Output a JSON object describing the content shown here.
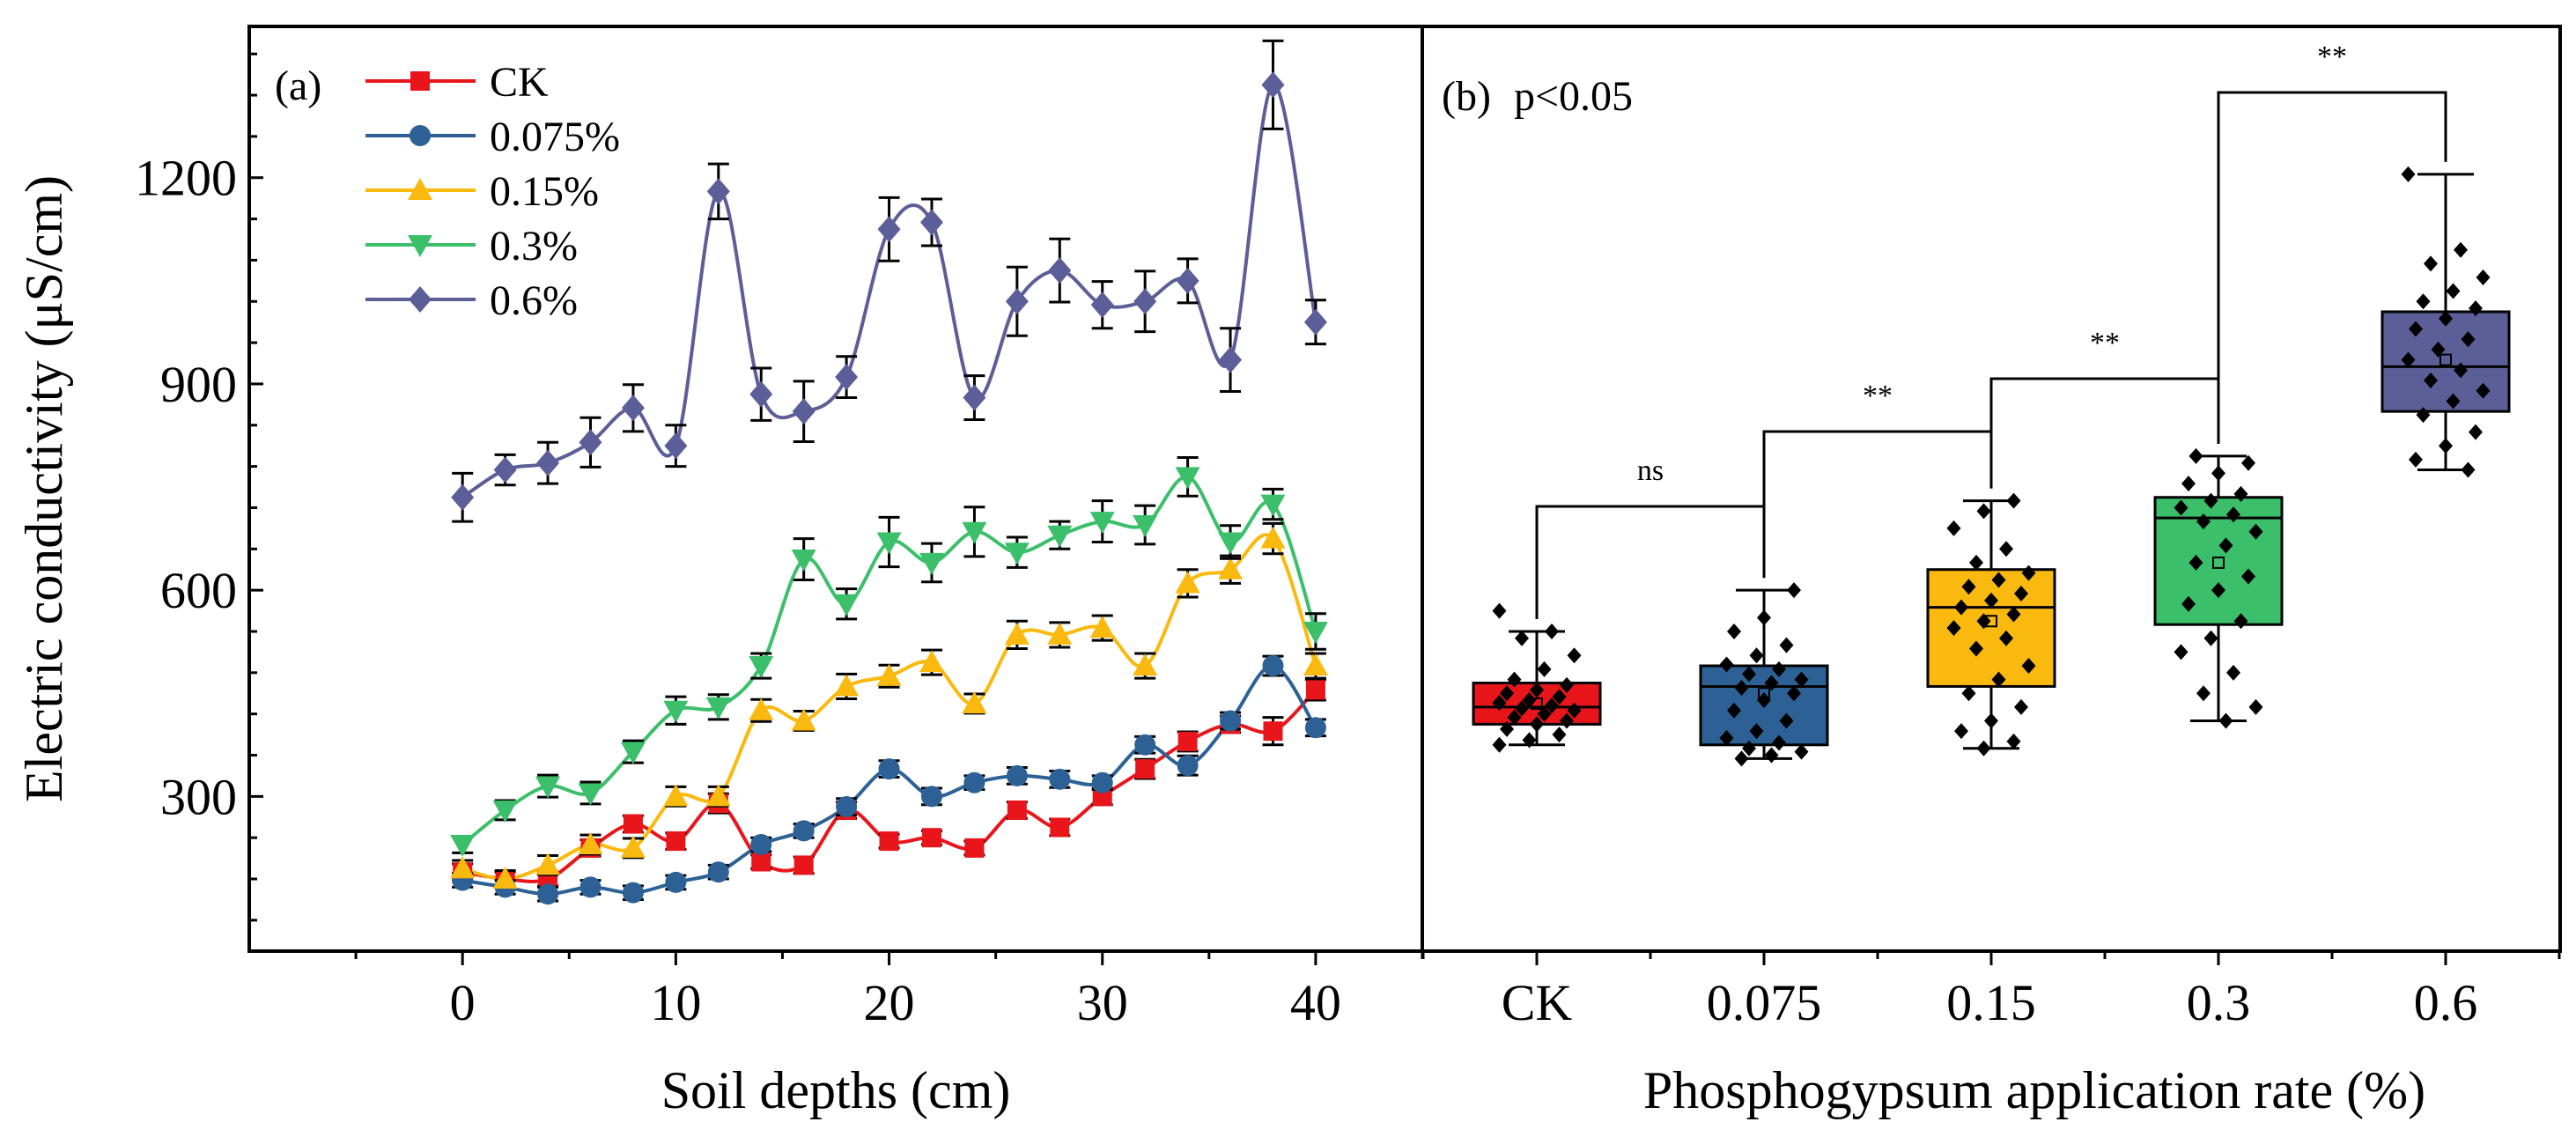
{
  "chart_data": [
    {
      "type": "line",
      "panel_label": "(a)",
      "xlabel": "Soil depths (cm)",
      "ylabel": "Electric conductivity (μS/cm)",
      "xlim": [
        -10,
        45
      ],
      "ylim": [
        75,
        1420
      ],
      "xticks": [
        0,
        10,
        20,
        30,
        40
      ],
      "yticks": [
        300,
        600,
        900,
        1200
      ],
      "legend_position": "top-left",
      "x": [
        0,
        2,
        4,
        6,
        8,
        10,
        12,
        14,
        16,
        18,
        20,
        22,
        24,
        26,
        28,
        30,
        32,
        34,
        36,
        38,
        40
      ],
      "series": [
        {
          "name": "CK",
          "color": "#e8161b",
          "marker": "square",
          "values": [
            190,
            180,
            180,
            225,
            260,
            235,
            290,
            205,
            200,
            280,
            235,
            240,
            225,
            280,
            255,
            300,
            340,
            380,
            405,
            395,
            455
          ],
          "errors": [
            12,
            10,
            10,
            12,
            12,
            12,
            14,
            10,
            12,
            12,
            10,
            10,
            10,
            12,
            12,
            12,
            14,
            14,
            12,
            20,
            15
          ]
        },
        {
          "name": "0.075%",
          "color": "#2d6196",
          "marker": "circle",
          "values": [
            178,
            168,
            158,
            168,
            160,
            175,
            190,
            230,
            250,
            285,
            340,
            300,
            320,
            330,
            325,
            320,
            375,
            345,
            410,
            490,
            400
          ],
          "errors": [
            10,
            10,
            10,
            10,
            10,
            10,
            10,
            10,
            10,
            12,
            12,
            12,
            10,
            12,
            12,
            10,
            12,
            14,
            12,
            14,
            12
          ]
        },
        {
          "name": "0.15%",
          "color": "#f9b90e",
          "marker": "triangle-up",
          "values": [
            195,
            180,
            200,
            230,
            225,
            300,
            300,
            425,
            410,
            460,
            475,
            495,
            435,
            535,
            535,
            545,
            490,
            610,
            630,
            675,
            490
          ],
          "errors": [
            12,
            12,
            14,
            14,
            14,
            14,
            14,
            16,
            14,
            18,
            16,
            18,
            14,
            20,
            18,
            18,
            18,
            20,
            20,
            22,
            18
          ]
        },
        {
          "name": "0.3%",
          "color": "#3bbf6a",
          "marker": "triangle-down",
          "values": [
            230,
            280,
            315,
            305,
            365,
            425,
            430,
            490,
            645,
            580,
            670,
            640,
            685,
            655,
            680,
            700,
            695,
            765,
            670,
            725,
            540
          ],
          "errors": [
            12,
            14,
            16,
            16,
            16,
            20,
            18,
            18,
            30,
            22,
            36,
            28,
            36,
            22,
            20,
            30,
            28,
            28,
            24,
            22,
            26
          ]
        },
        {
          "name": "0.6%",
          "color": "#5c5e98",
          "marker": "diamond",
          "values": [
            735,
            775,
            785,
            815,
            865,
            810,
            1180,
            885,
            860,
            910,
            1125,
            1135,
            880,
            1020,
            1065,
            1015,
            1020,
            1050,
            935,
            1335,
            990
          ],
          "errors": [
            35,
            22,
            30,
            36,
            34,
            30,
            40,
            38,
            44,
            30,
            46,
            34,
            32,
            50,
            46,
            34,
            44,
            32,
            46,
            64,
            32
          ]
        }
      ]
    },
    {
      "type": "box",
      "panel_label": "(b)",
      "annotation": "p<0.05",
      "xlabel": "Phosphogypsum application rate (%)",
      "ylabel": "",
      "ylim": [
        75,
        1420
      ],
      "categories": [
        "CK",
        "0.075",
        "0.15",
        "0.3",
        "0.6"
      ],
      "colors": [
        "#e8161b",
        "#2d6196",
        "#f9b90e",
        "#3bbf6a",
        "#5c5e98"
      ],
      "boxes": [
        {
          "min": 375,
          "q1": 405,
          "median": 430,
          "q3": 465,
          "max": 540,
          "mean": 435,
          "points": [
            375,
            382,
            390,
            398,
            405,
            410,
            415,
            420,
            425,
            428,
            432,
            436,
            440,
            445,
            450,
            455,
            462,
            470,
            485,
            505,
            530,
            540,
            570
          ]
        },
        {
          "min": 355,
          "q1": 375,
          "median": 460,
          "q3": 490,
          "max": 600,
          "mean": 450,
          "points": [
            355,
            360,
            365,
            370,
            378,
            385,
            395,
            410,
            425,
            440,
            450,
            458,
            465,
            470,
            478,
            485,
            492,
            505,
            520,
            540,
            560,
            600
          ]
        },
        {
          "min": 370,
          "q1": 460,
          "median": 575,
          "q3": 630,
          "max": 730,
          "mean": 555,
          "points": [
            370,
            380,
            395,
            410,
            430,
            450,
            470,
            490,
            515,
            530,
            545,
            555,
            565,
            575,
            585,
            595,
            605,
            615,
            625,
            640,
            660,
            690,
            715,
            730
          ]
        },
        {
          "min": 410,
          "q1": 550,
          "median": 705,
          "q3": 735,
          "max": 795,
          "mean": 640,
          "points": [
            410,
            430,
            450,
            480,
            510,
            530,
            555,
            580,
            600,
            620,
            640,
            665,
            685,
            700,
            710,
            720,
            730,
            740,
            755,
            770,
            785,
            795
          ]
        },
        {
          "min": 775,
          "q1": 860,
          "median": 925,
          "q3": 1005,
          "max": 1205,
          "mean": 935,
          "points": [
            775,
            790,
            810,
            830,
            855,
            875,
            890,
            905,
            920,
            935,
            950,
            965,
            980,
            995,
            1010,
            1020,
            1035,
            1055,
            1075,
            1095,
            1205
          ]
        }
      ],
      "comparisons": [
        {
          "from": "CK",
          "to": "0.075",
          "label": "ns"
        },
        {
          "from": "0.075",
          "to": "0.15",
          "label": "**"
        },
        {
          "from": "0.15",
          "to": "0.3",
          "label": "**"
        },
        {
          "from": "0.3",
          "to": "0.6",
          "label": "**"
        }
      ]
    }
  ]
}
